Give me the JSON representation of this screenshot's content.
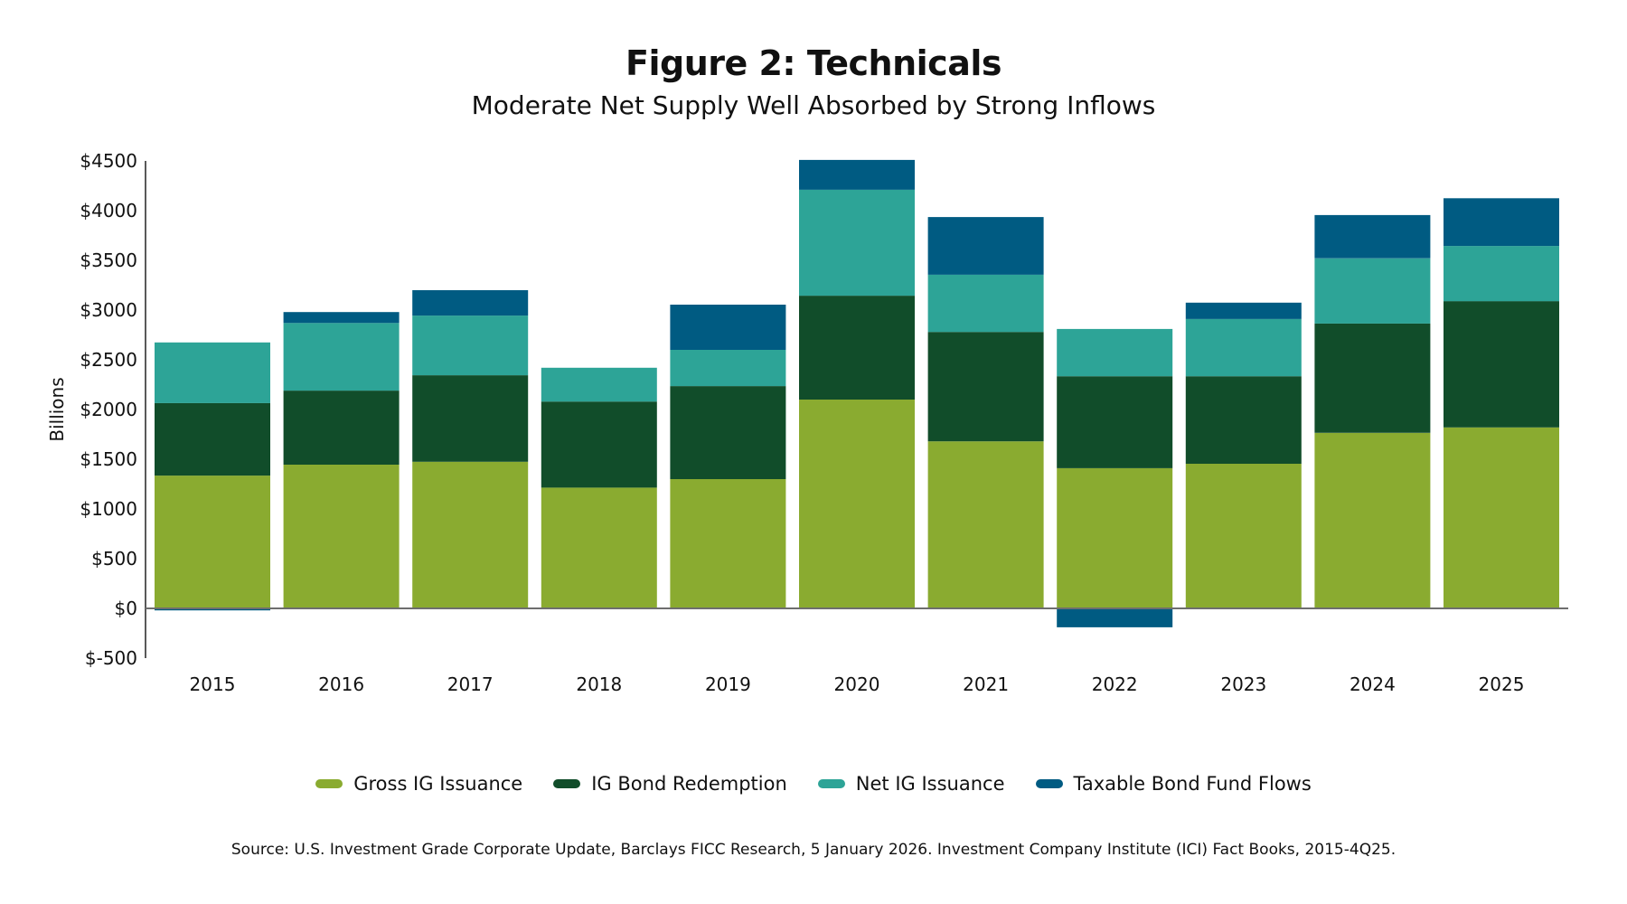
{
  "chart_data": {
    "type": "bar",
    "stacked": true,
    "title": "Figure 2: Technicals",
    "subtitle": "Moderate Net Supply Well Absorbed by Strong Inflows",
    "xlabel": "",
    "ylabel": "Billions",
    "ylim": [
      -500,
      4500
    ],
    "yticks": [
      -500,
      0,
      500,
      1000,
      1500,
      2000,
      2500,
      3000,
      3500,
      4000,
      4500
    ],
    "ytick_labels": [
      "$-500",
      "$0",
      "$500",
      "$1000",
      "$1500",
      "$2000",
      "$2500",
      "$3000",
      "$3500",
      "$4000",
      "$4500"
    ],
    "grid": false,
    "legend_position": "bottom",
    "categories": [
      "2015",
      "2016",
      "2017",
      "2018",
      "2019",
      "2020",
      "2021",
      "2022",
      "2023",
      "2024",
      "2025"
    ],
    "series": [
      {
        "name": "Gross IG Issuance",
        "color": "#8AAB30",
        "values": [
          1335,
          1445,
          1475,
          1215,
          1300,
          2100,
          1680,
          1410,
          1455,
          1765,
          1820
        ]
      },
      {
        "name": "IG Bond Redemption",
        "color": "#114D2A",
        "values": [
          730,
          745,
          870,
          865,
          935,
          1045,
          1100,
          925,
          880,
          1100,
          1270
        ]
      },
      {
        "name": "Net IG Issuance",
        "color": "#2DA497",
        "values": [
          610,
          680,
          600,
          340,
          365,
          1065,
          575,
          475,
          575,
          655,
          555
        ]
      },
      {
        "name": "Taxable Bond Fund Flows",
        "color": "#005B82",
        "values": [
          -20,
          110,
          255,
          0,
          455,
          300,
          580,
          -190,
          165,
          435,
          480
        ]
      }
    ],
    "source": "Source: U.S. Investment Grade Corporate Update, Barclays FICC Research, 5 January 2026. Investment Company Institute (ICI) Fact Books, 2015-4Q25."
  }
}
